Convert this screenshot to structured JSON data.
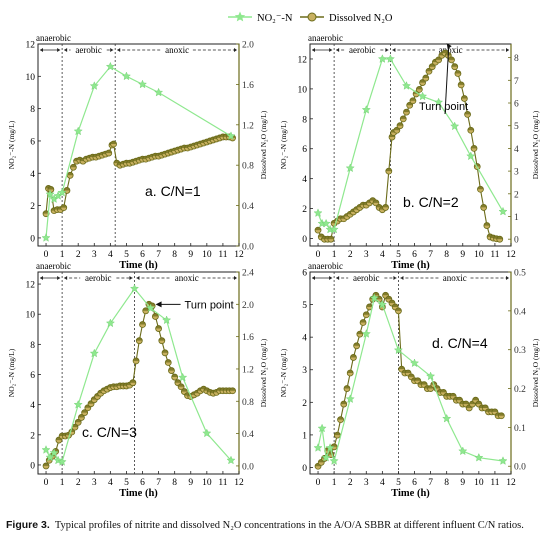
{
  "legend": {
    "nitrite_label": "NO₂⁻-N",
    "n2o_label": "Dissolved N₂O",
    "nitrite_color": "#8fe88f",
    "n2o_color": "#6b6b1a",
    "n2o_fill": "#c8b060"
  },
  "caption": {
    "label": "Figure 3.",
    "text": "Typical profiles of nitrite and dissolved N₂O concentrations in the A/O/A SBBR at different influent C/N ratios."
  },
  "chart_data": [
    {
      "type": "line",
      "panel_label": "a. C/N=1",
      "xlabel": "Time (h)",
      "ylabel_left": "NO₂⁻-N (mg/L)",
      "ylabel_right": "Dissolved N₂O (mg/L)",
      "xlim": [
        -0.5,
        12
      ],
      "ylim_left": [
        -0.5,
        12
      ],
      "ylim_right": [
        0,
        2.0
      ],
      "xticks": [
        0,
        1,
        2,
        3,
        4,
        5,
        6,
        7,
        8,
        9,
        10,
        11,
        12
      ],
      "yticks_left": [
        0,
        2,
        4,
        6,
        8,
        10,
        12
      ],
      "yticks_right": [
        0.0,
        0.4,
        0.8,
        1.2,
        1.6,
        2.0
      ],
      "phases": [
        {
          "name": "anaerobic",
          "start": -0.5,
          "end": 1.0
        },
        {
          "name": "aerobic",
          "start": 1.0,
          "end": 4.3
        },
        {
          "name": "anoxic",
          "start": 4.3,
          "end": 12
        }
      ],
      "phase_dividers": [
        1.0,
        4.3
      ],
      "nitrite": {
        "x": [
          0,
          0.25,
          0.5,
          0.75,
          1,
          2,
          3,
          4,
          5,
          6,
          7,
          11.5
        ],
        "y": [
          0,
          2.7,
          2.4,
          2.6,
          2.8,
          6.6,
          9.4,
          10.6,
          10,
          9.5,
          9,
          6.3
        ]
      },
      "n2o": {
        "x": [
          0,
          0.15,
          0.3,
          0.5,
          0.7,
          0.9,
          1.1,
          1.3,
          1.5,
          1.7,
          1.9,
          2.1,
          2.3,
          2.5,
          2.7,
          2.9,
          3.1,
          3.3,
          3.5,
          3.7,
          3.9,
          4.1,
          4.2,
          4.4,
          4.6,
          4.8,
          5.0,
          5.2,
          5.4,
          5.6,
          5.8,
          6.0,
          6.2,
          6.4,
          6.6,
          6.8,
          7.0,
          7.2,
          7.4,
          7.6,
          7.8,
          8.0,
          8.2,
          8.4,
          8.6,
          8.8,
          9.0,
          9.2,
          9.4,
          9.6,
          9.8,
          10.0,
          10.2,
          10.4,
          10.6,
          10.8,
          11.0,
          11.2,
          11.4,
          11.6
        ],
        "y": [
          0.32,
          0.57,
          0.56,
          0.35,
          0.36,
          0.36,
          0.38,
          0.55,
          0.7,
          0.78,
          0.84,
          0.85,
          0.84,
          0.86,
          0.87,
          0.88,
          0.88,
          0.89,
          0.9,
          0.91,
          0.92,
          1.0,
          1.01,
          0.82,
          0.8,
          0.81,
          0.82,
          0.82,
          0.83,
          0.84,
          0.85,
          0.86,
          0.86,
          0.87,
          0.88,
          0.89,
          0.89,
          0.9,
          0.91,
          0.92,
          0.93,
          0.94,
          0.95,
          0.96,
          0.97,
          0.97,
          0.98,
          0.99,
          1.0,
          1.01,
          1.02,
          1.03,
          1.04,
          1.05,
          1.06,
          1.07,
          1.08,
          1.08,
          1.08,
          1.07
        ]
      }
    },
    {
      "type": "line",
      "panel_label": "b. C/N=2",
      "annotation": "Turn point",
      "annotation_x": 8.0,
      "xlabel": "Time (h)",
      "ylabel_left": "NO₂⁻-N (mg/L)",
      "ylabel_right": "Dissolved N₂O (mg/L)",
      "xlim": [
        -0.5,
        12
      ],
      "ylim_left": [
        -0.5,
        13
      ],
      "ylim_right": [
        -0.3,
        8.6
      ],
      "xticks": [
        0,
        1,
        2,
        3,
        4,
        5,
        6,
        7,
        8,
        9,
        10,
        11,
        12
      ],
      "yticks_left": [
        0,
        2,
        4,
        6,
        8,
        10,
        12
      ],
      "yticks_right": [
        0,
        1,
        2,
        3,
        4,
        5,
        6,
        7,
        8
      ],
      "phases": [
        {
          "name": "anaerobic",
          "start": -0.5,
          "end": 1.0
        },
        {
          "name": "aerobic",
          "start": 1.0,
          "end": 4.5
        },
        {
          "name": "anoxic",
          "start": 4.5,
          "end": 12
        }
      ],
      "phase_dividers": [
        1.0,
        4.5
      ],
      "nitrite": {
        "x": [
          0,
          0.25,
          0.5,
          0.75,
          1,
          2,
          3,
          4,
          4.5,
          5.5,
          6.5,
          7.5,
          8.5,
          9.5,
          11.5
        ],
        "y": [
          1.7,
          1.0,
          1.0,
          0.6,
          0.6,
          4.7,
          8.6,
          12,
          12,
          10.2,
          9.5,
          9.1,
          7.5,
          5.5,
          1.8
        ]
      },
      "n2o": {
        "x": [
          0,
          0.2,
          0.4,
          0.6,
          0.8,
          1.0,
          1.2,
          1.4,
          1.6,
          1.8,
          2.0,
          2.2,
          2.4,
          2.6,
          2.8,
          3.0,
          3.2,
          3.4,
          3.6,
          3.8,
          4.0,
          4.2,
          4.4,
          4.6,
          4.7,
          4.9,
          5.1,
          5.3,
          5.5,
          5.7,
          5.9,
          6.1,
          6.3,
          6.5,
          6.7,
          6.9,
          7.1,
          7.3,
          7.5,
          7.7,
          7.9,
          8.1,
          8.3,
          8.5,
          8.7,
          8.9,
          9.1,
          9.3,
          9.5,
          9.7,
          9.9,
          10.1,
          10.3,
          10.5,
          10.7,
          10.9,
          11.1,
          11.3
        ],
        "y": [
          0.4,
          0.1,
          0.0,
          0.0,
          0.0,
          0.7,
          0.8,
          0.9,
          0.9,
          1.0,
          1.1,
          1.2,
          1.3,
          1.4,
          1.5,
          1.5,
          1.6,
          1.7,
          1.6,
          1.4,
          1.3,
          1.4,
          3.0,
          4.5,
          4.7,
          4.8,
          5.0,
          5.3,
          5.6,
          5.9,
          6.1,
          6.4,
          6.6,
          6.9,
          7.1,
          7.4,
          7.6,
          7.8,
          7.9,
          8.1,
          8.2,
          8.1,
          7.9,
          7.6,
          7.3,
          6.8,
          6.2,
          5.5,
          4.8,
          4.0,
          3.2,
          2.2,
          1.4,
          0.6,
          0.1,
          0.05,
          0.02,
          0.0
        ]
      }
    },
    {
      "type": "line",
      "panel_label": "c. C/N=3",
      "annotation": "Turn point",
      "annotation_x": 6.5,
      "xlabel": "Time (h)",
      "ylabel_left": "NO₂⁻-N (mg/L)",
      "ylabel_right": "Dissolved N₂O (mg/L)",
      "xlim": [
        -0.5,
        12
      ],
      "ylim_left": [
        -0.6,
        12.8
      ],
      "ylim_right": [
        -0.1,
        2.4
      ],
      "xticks": [
        0,
        1,
        2,
        3,
        4,
        5,
        6,
        7,
        8,
        9,
        10,
        11,
        12
      ],
      "yticks_left": [
        0,
        2,
        4,
        6,
        8,
        10,
        12
      ],
      "yticks_right": [
        0.0,
        0.4,
        0.8,
        1.2,
        1.6,
        2.0,
        2.4
      ],
      "phases": [
        {
          "name": "anaerobic",
          "start": -0.5,
          "end": 1.0
        },
        {
          "name": "aerobic",
          "start": 1.0,
          "end": 5.5
        },
        {
          "name": "anoxic",
          "start": 5.5,
          "end": 12
        }
      ],
      "phase_dividers": [
        1.0,
        5.5
      ],
      "nitrite": {
        "x": [
          0,
          0.25,
          0.5,
          0.75,
          1,
          2,
          3,
          4,
          5.5,
          6.5,
          7.5,
          8.5,
          10,
          11.5
        ],
        "y": [
          1.0,
          0.5,
          0.8,
          0.3,
          0.2,
          4.0,
          7.4,
          9.4,
          11.7,
          10.4,
          9.6,
          5.8,
          2.1,
          0.3
        ]
      },
      "n2o": {
        "x": [
          0,
          0.2,
          0.4,
          0.6,
          0.8,
          1.0,
          1.2,
          1.4,
          1.6,
          1.8,
          2.0,
          2.2,
          2.4,
          2.6,
          2.8,
          3.0,
          3.2,
          3.4,
          3.6,
          3.8,
          4.0,
          4.2,
          4.4,
          4.6,
          4.8,
          5.0,
          5.2,
          5.4,
          5.6,
          5.8,
          6.0,
          6.2,
          6.4,
          6.6,
          6.8,
          7.0,
          7.2,
          7.4,
          7.6,
          7.8,
          8.0,
          8.2,
          8.4,
          8.6,
          8.8,
          9.0,
          9.2,
          9.4,
          9.6,
          9.8,
          10.0,
          10.2,
          10.4,
          10.6,
          10.8,
          11.0,
          11.2,
          11.4,
          11.6
        ],
        "y": [
          0.0,
          0.07,
          0.12,
          0.18,
          0.32,
          0.37,
          0.37,
          0.38,
          0.42,
          0.48,
          0.54,
          0.6,
          0.66,
          0.72,
          0.77,
          0.82,
          0.86,
          0.9,
          0.93,
          0.95,
          0.97,
          0.98,
          0.98,
          0.99,
          0.99,
          0.99,
          1.0,
          1.03,
          1.3,
          1.55,
          1.75,
          1.92,
          2.0,
          1.98,
          1.85,
          1.7,
          1.55,
          1.4,
          1.28,
          1.18,
          1.1,
          1.03,
          0.98,
          0.92,
          0.87,
          0.86,
          0.88,
          0.9,
          0.93,
          0.95,
          0.93,
          0.91,
          0.9,
          0.91,
          0.93,
          0.93,
          0.93,
          0.93,
          0.93
        ]
      }
    },
    {
      "type": "line",
      "panel_label": "d. C/N=4",
      "xlabel": "Time (h)",
      "ylabel_left": "NO₂⁻-N (mg/L)",
      "ylabel_right": "Dissolved N₂O (mg/L)",
      "xlim": [
        -0.5,
        12
      ],
      "ylim_left": [
        -0.2,
        6
      ],
      "ylim_right": [
        -0.02,
        0.5
      ],
      "xticks": [
        0,
        1,
        2,
        3,
        4,
        5,
        6,
        7,
        8,
        9,
        10,
        11,
        12
      ],
      "yticks_left": [
        0,
        1,
        2,
        3,
        4,
        5,
        6
      ],
      "yticks_right": [
        0.0,
        0.1,
        0.2,
        0.3,
        0.4,
        0.5
      ],
      "phases": [
        {
          "name": "anaerobic",
          "start": -0.5,
          "end": 1.0
        },
        {
          "name": "aerobic",
          "start": 1.0,
          "end": 5.0
        },
        {
          "name": "anoxic",
          "start": 5.0,
          "end": 12
        }
      ],
      "phase_dividers": [
        1.0,
        5.0
      ],
      "nitrite": {
        "x": [
          0,
          0.25,
          0.5,
          0.75,
          1,
          2,
          3,
          3.5,
          4,
          5,
          6,
          7,
          8,
          9,
          10,
          11.5
        ],
        "y": [
          0.6,
          1.2,
          0.3,
          0.6,
          0.2,
          2.1,
          4.1,
          5.2,
          5.0,
          3.6,
          3.2,
          2.8,
          1.5,
          0.5,
          0.3,
          0.2
        ]
      },
      "n2o": {
        "x": [
          0,
          0.2,
          0.4,
          0.6,
          0.8,
          1.0,
          1.2,
          1.4,
          1.6,
          1.8,
          2.0,
          2.2,
          2.4,
          2.6,
          2.8,
          3.0,
          3.2,
          3.4,
          3.6,
          3.8,
          4.0,
          4.2,
          4.4,
          4.6,
          4.8,
          5.0,
          5.2,
          5.4,
          5.6,
          5.8,
          6.0,
          6.2,
          6.4,
          6.6,
          6.8,
          7.0,
          7.2,
          7.4,
          7.6,
          7.8,
          8.0,
          8.2,
          8.4,
          8.6,
          8.8,
          9.0,
          9.2,
          9.4,
          9.6,
          9.8,
          10.0,
          10.2,
          10.4,
          10.6,
          10.8,
          11.0,
          11.2,
          11.4
        ],
        "y": [
          0.0,
          0.01,
          0.02,
          0.04,
          0.03,
          0.05,
          0.08,
          0.12,
          0.16,
          0.2,
          0.24,
          0.28,
          0.31,
          0.34,
          0.37,
          0.39,
          0.41,
          0.43,
          0.44,
          0.43,
          0.41,
          0.44,
          0.43,
          0.42,
          0.41,
          0.4,
          0.25,
          0.24,
          0.24,
          0.23,
          0.22,
          0.22,
          0.21,
          0.21,
          0.2,
          0.2,
          0.21,
          0.2,
          0.19,
          0.19,
          0.18,
          0.18,
          0.18,
          0.17,
          0.17,
          0.16,
          0.16,
          0.15,
          0.16,
          0.17,
          0.16,
          0.15,
          0.15,
          0.14,
          0.14,
          0.14,
          0.13,
          0.13
        ]
      }
    }
  ]
}
